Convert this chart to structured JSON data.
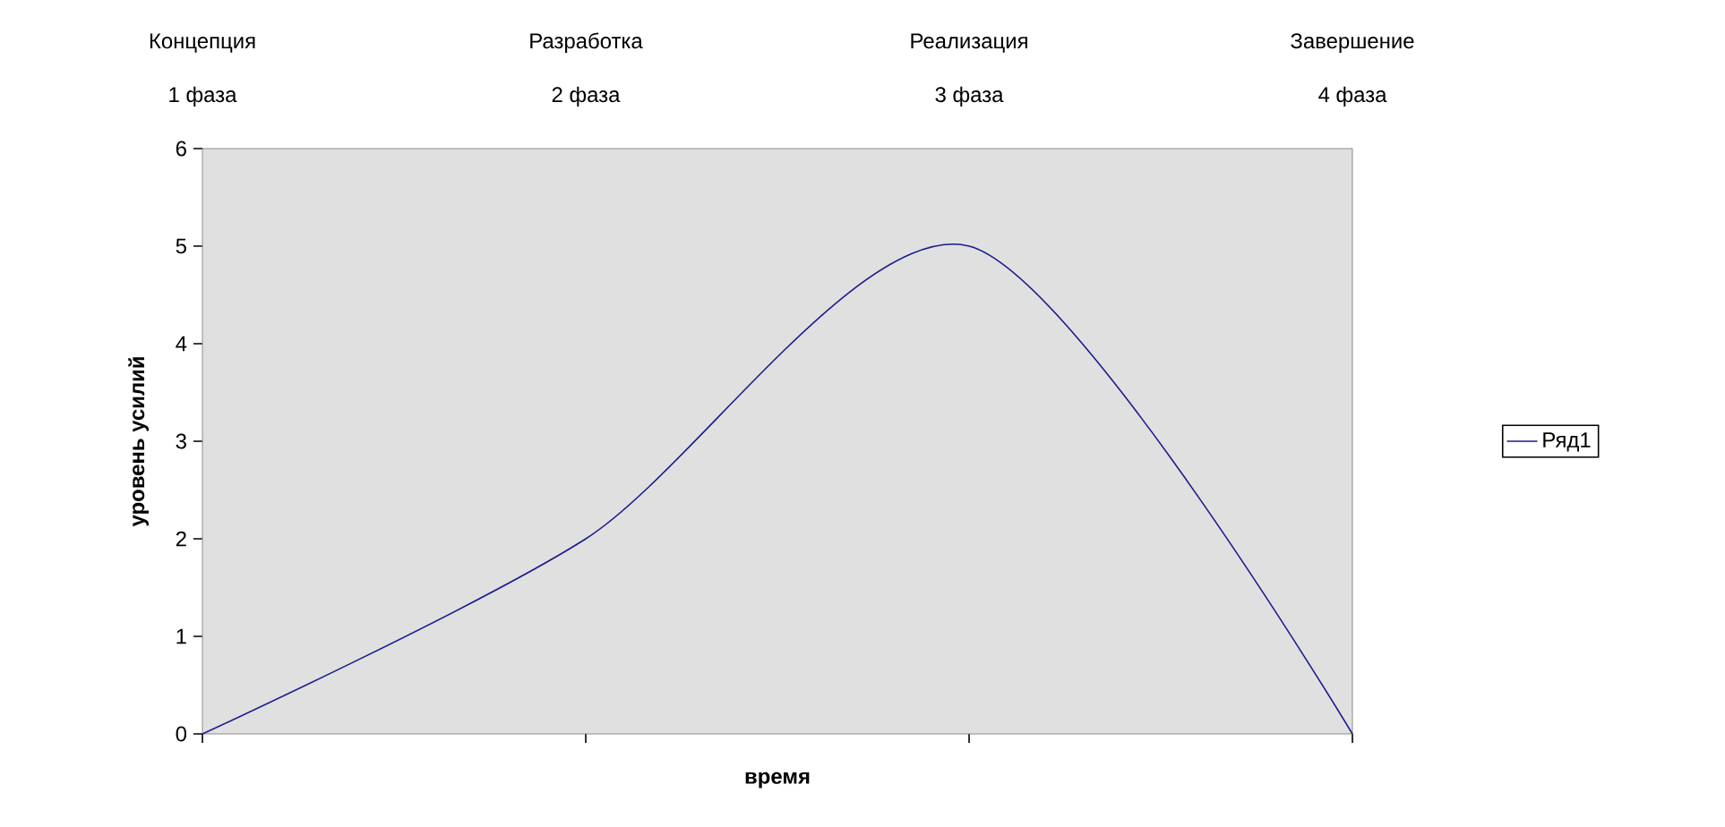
{
  "chart_data": {
    "type": "line",
    "xlabel": "время",
    "ylabel": "уровень усилий",
    "annotations": [
      "Концепция",
      "1 фаза",
      "Разработка",
      "2 фаза",
      "Реализация",
      "3 фаза",
      "Завершение",
      "4 фаза"
    ],
    "categories": [
      null,
      null,
      null,
      null
    ],
    "series": [
      {
        "name": "Ряд1",
        "color": "#1a1a8c",
        "values": [
          0,
          2,
          5,
          0
        ]
      }
    ],
    "ylim": [
      0,
      6
    ],
    "yticks": [
      0,
      1,
      2,
      3,
      4,
      5,
      6
    ],
    "grid": false,
    "legend": "right",
    "tick_labels": "y",
    "marker": "none",
    "line_style": "solid"
  }
}
